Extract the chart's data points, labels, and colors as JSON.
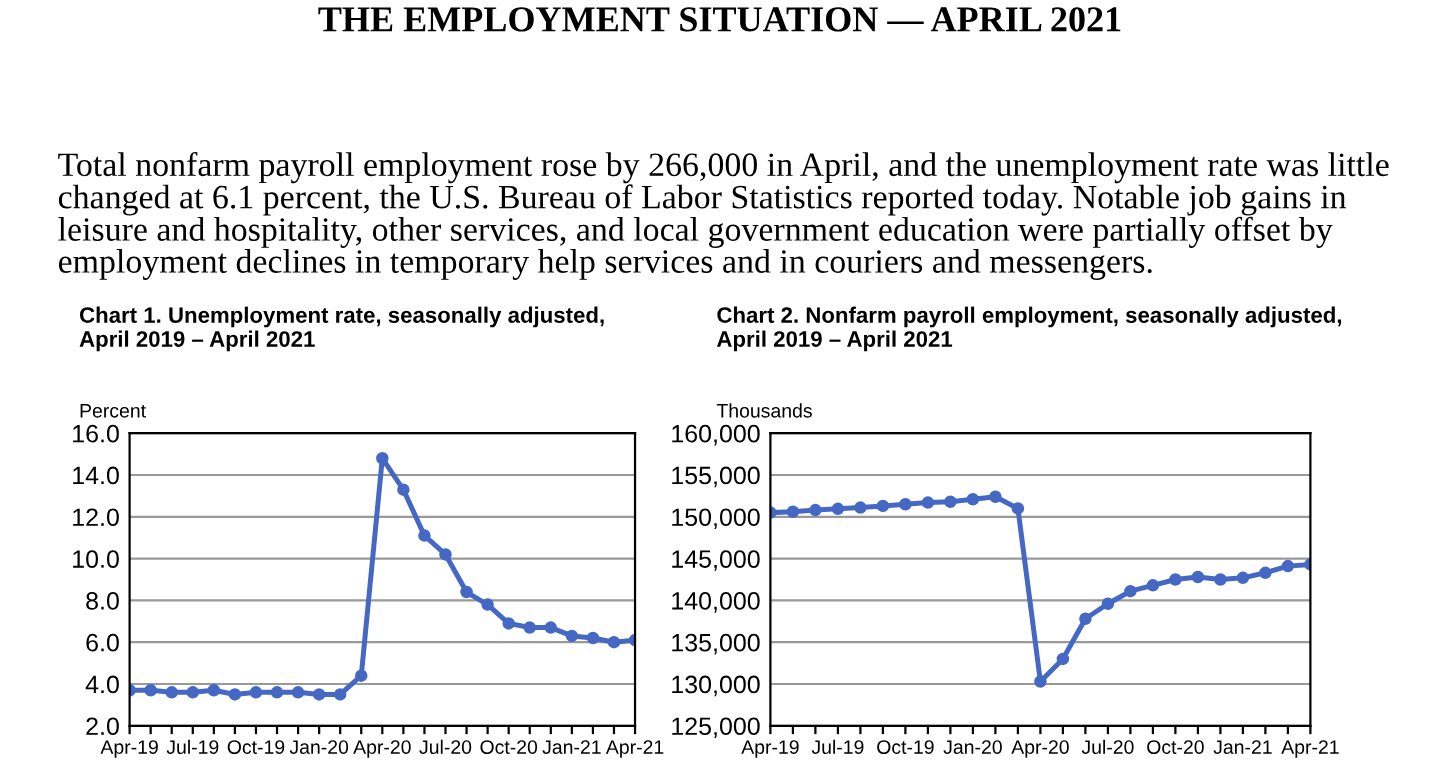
{
  "chart_data": [
    {
      "type": "other",
      "title": "THE EMPLOYMENT SITUATION — APRIL 2021",
      "annotations": [
        "Total nonfarm payroll employment rose by 266,000 in April, and the unemployment rate was little changed at 6.1 percent, the U.S. Bureau of Labor Statistics reported today. Notable job gains in leisure and hospitality, other services, and local government education were partially offset by employment declines in temporary help services and in couriers and messengers."
      ]
    },
    {
      "type": "line",
      "title": "Chart 1. Unemployment rate, seasonally adjusted,\nApril 2019 – April 2021",
      "ylabel": "Percent",
      "categories": [
        "Apr-19",
        null,
        null,
        "Jul-19",
        null,
        null,
        "Oct-19",
        null,
        null,
        "Jan-20",
        null,
        null,
        "Apr-20",
        null,
        null,
        "Jul-20",
        null,
        null,
        "Oct-20",
        null,
        null,
        "Jan-21",
        null,
        null,
        "Apr-21"
      ],
      "series": [
        {
          "color": "#4468c4",
          "values": [
            3.7,
            3.7,
            3.6,
            3.6,
            3.7,
            3.5,
            3.6,
            3.6,
            3.6,
            3.5,
            3.5,
            4.4,
            14.8,
            13.3,
            11.1,
            10.2,
            8.4,
            7.8,
            6.9,
            6.7,
            6.7,
            6.3,
            6.2,
            6.0,
            6.1
          ]
        }
      ],
      "ylim": [
        2,
        16
      ],
      "yticks": [
        {
          "value": 2,
          "label": "2.0"
        },
        {
          "value": 4,
          "label": "4.0"
        },
        {
          "value": 6,
          "label": "6.0"
        },
        {
          "value": 8,
          "label": "8.0"
        },
        {
          "value": 10,
          "label": "10.0"
        },
        {
          "value": 12,
          "label": "12.0"
        },
        {
          "value": 14,
          "label": "14.0"
        },
        {
          "value": 16,
          "label": "16.0"
        }
      ],
      "grid": "y",
      "marker": "circle",
      "line_style": "solid",
      "legend": false
    },
    {
      "type": "line",
      "title": "Chart 2. Nonfarm payroll employment, seasonally adjusted,\nApril 2019 – April 2021",
      "ylabel": "Thousands",
      "categories": [
        "Apr-19",
        null,
        null,
        "Jul-19",
        null,
        null,
        "Oct-19",
        null,
        null,
        "Jan-20",
        null,
        null,
        "Apr-20",
        null,
        null,
        "Jul-20",
        null,
        null,
        "Oct-20",
        null,
        null,
        "Jan-21",
        null,
        null,
        "Apr-21"
      ],
      "series": [
        {
          "color": "#4468c4",
          "values": [
            150500,
            150600,
            150800,
            150950,
            151100,
            151300,
            151500,
            151700,
            151800,
            152100,
            152400,
            151000,
            130300,
            133000,
            137800,
            139600,
            141100,
            141800,
            142500,
            142800,
            142500,
            142700,
            143300,
            144100,
            144300
          ]
        }
      ],
      "ylim": [
        125000,
        160000
      ],
      "yticks": [
        {
          "value": 125000,
          "label": "125,000"
        },
        {
          "value": 130000,
          "label": "130,000"
        },
        {
          "value": 135000,
          "label": "135,000"
        },
        {
          "value": 140000,
          "label": "140,000"
        },
        {
          "value": 145000,
          "label": "145,000"
        },
        {
          "value": 150000,
          "label": "150,000"
        },
        {
          "value": 155000,
          "label": "155,000"
        },
        {
          "value": 160000,
          "label": "160,000"
        }
      ],
      "grid": "y",
      "marker": "circle",
      "line_style": "solid",
      "legend": false
    }
  ]
}
